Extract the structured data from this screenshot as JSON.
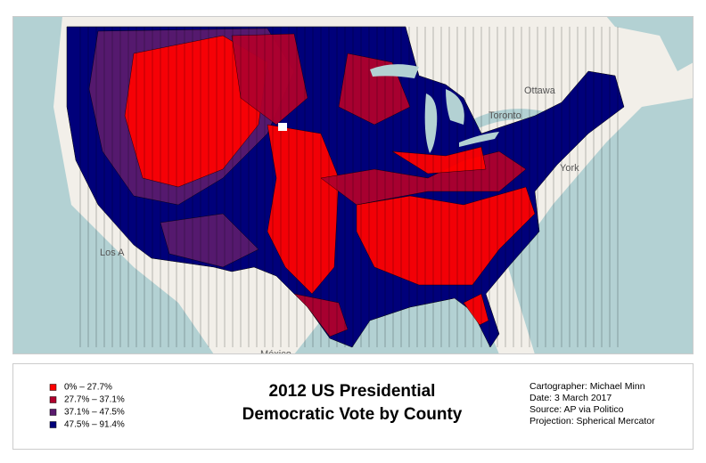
{
  "map": {
    "labels": [
      "Ottawa",
      "Toronto",
      "York",
      "Los A",
      "México"
    ]
  },
  "legend": {
    "items": [
      {
        "label": "0% – 27.7%",
        "color": "#ff0000"
      },
      {
        "label": "27.7% – 37.1%",
        "color": "#b0002c"
      },
      {
        "label": "37.1% – 47.5%",
        "color": "#5a1a6e"
      },
      {
        "label": "47.5% – 91.4%",
        "color": "#00007a"
      }
    ]
  },
  "title": [
    "2012 US Presidential",
    "Democratic Vote by County"
  ],
  "credits": [
    "Cartographer: Michael Minn",
    "Date: 3 March 2017",
    "Source: AP via Politico",
    "Projection: Spherical Mercator"
  ]
}
